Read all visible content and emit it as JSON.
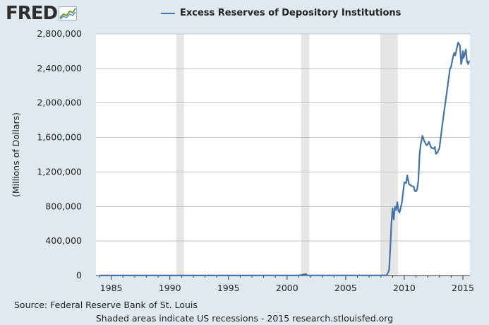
{
  "logo": {
    "text": "FRED",
    "icon": "trend-chart-icon",
    "color": "#2d2d2d"
  },
  "chart_data": {
    "type": "line",
    "title": "",
    "series": [
      {
        "name": "Excess Reserves of Depository Institutions",
        "color": "#4572a7",
        "points": [
          [
            1984.0,
            600
          ],
          [
            1985.0,
            700
          ],
          [
            1986.0,
            900
          ],
          [
            1987.0,
            800
          ],
          [
            1988.0,
            900
          ],
          [
            1989.0,
            800
          ],
          [
            1990.0,
            900
          ],
          [
            1991.0,
            1000
          ],
          [
            1992.0,
            1100
          ],
          [
            1993.0,
            1000
          ],
          [
            1994.0,
            1100
          ],
          [
            1995.0,
            1000
          ],
          [
            1996.0,
            1100
          ],
          [
            1997.0,
            1200
          ],
          [
            1998.0,
            1300
          ],
          [
            1999.0,
            1400
          ],
          [
            2000.0,
            1200
          ],
          [
            2001.0,
            1500
          ],
          [
            2001.6,
            18000
          ],
          [
            2001.75,
            1800
          ],
          [
            2002.0,
            1700
          ],
          [
            2003.0,
            1700
          ],
          [
            2004.0,
            1800
          ],
          [
            2005.0,
            1700
          ],
          [
            2006.0,
            1800
          ],
          [
            2007.0,
            1700
          ],
          [
            2008.0,
            2000
          ],
          [
            2008.5,
            3000
          ],
          [
            2008.7,
            60000
          ],
          [
            2008.8,
            300000
          ],
          [
            2008.9,
            600000
          ],
          [
            2009.0,
            780000
          ],
          [
            2009.1,
            650000
          ],
          [
            2009.2,
            800000
          ],
          [
            2009.3,
            760000
          ],
          [
            2009.4,
            850000
          ],
          [
            2009.5,
            750000
          ],
          [
            2009.6,
            730000
          ],
          [
            2009.8,
            850000
          ],
          [
            2010.0,
            1080000
          ],
          [
            2010.15,
            1070000
          ],
          [
            2010.25,
            1160000
          ],
          [
            2010.4,
            1060000
          ],
          [
            2010.6,
            1040000
          ],
          [
            2010.8,
            1030000
          ],
          [
            2010.9,
            980000
          ],
          [
            2011.0,
            975000
          ],
          [
            2011.1,
            1000000
          ],
          [
            2011.2,
            1100000
          ],
          [
            2011.3,
            1400000
          ],
          [
            2011.4,
            1520000
          ],
          [
            2011.5,
            1580000
          ],
          [
            2011.55,
            1620000
          ],
          [
            2011.7,
            1560000
          ],
          [
            2011.9,
            1510000
          ],
          [
            2012.0,
            1520000
          ],
          [
            2012.1,
            1550000
          ],
          [
            2012.3,
            1480000
          ],
          [
            2012.5,
            1470000
          ],
          [
            2012.6,
            1490000
          ],
          [
            2012.7,
            1410000
          ],
          [
            2012.85,
            1430000
          ],
          [
            2013.0,
            1480000
          ],
          [
            2013.2,
            1700000
          ],
          [
            2013.4,
            1900000
          ],
          [
            2013.6,
            2100000
          ],
          [
            2013.8,
            2300000
          ],
          [
            2013.9,
            2400000
          ],
          [
            2014.0,
            2420000
          ],
          [
            2014.1,
            2500000
          ],
          [
            2014.25,
            2580000
          ],
          [
            2014.35,
            2550000
          ],
          [
            2014.45,
            2620000
          ],
          [
            2014.6,
            2700000
          ],
          [
            2014.75,
            2660000
          ],
          [
            2014.85,
            2450000
          ],
          [
            2014.9,
            2480000
          ],
          [
            2015.0,
            2600000
          ],
          [
            2015.05,
            2520000
          ],
          [
            2015.15,
            2560000
          ],
          [
            2015.25,
            2620000
          ],
          [
            2015.35,
            2480000
          ],
          [
            2015.45,
            2450000
          ],
          [
            2015.55,
            2490000
          ]
        ]
      }
    ],
    "recessions": [
      [
        1990.55,
        1991.2
      ],
      [
        2001.2,
        2001.9
      ],
      [
        2007.95,
        2009.45
      ]
    ],
    "recession_color": "#e6e6e6",
    "xlim": [
      1983.7,
      2015.6
    ],
    "ylim": [
      0,
      2800000
    ],
    "yticks": [
      0,
      400000,
      800000,
      1200000,
      1600000,
      2000000,
      2400000,
      2800000
    ],
    "ytick_labels": [
      "0",
      "400,000",
      "800,000",
      "1,200,000",
      "1,600,000",
      "2,000,000",
      "2,400,000",
      "2,800,000"
    ],
    "xticks": [
      1985,
      1990,
      1995,
      2000,
      2005,
      2010,
      2015
    ],
    "xtick_labels": [
      "1985",
      "1990",
      "1995",
      "2000",
      "2005",
      "2010",
      "2015"
    ],
    "ylabel": "(Millions of Dollars)",
    "xlabel": "",
    "legend_position": "top-center",
    "grid": "horizontal"
  },
  "footer": {
    "source": "Source: Federal Reserve Bank of St. Louis",
    "note": "Shaded areas indicate US recessions - 2015 research.stlouisfed.org"
  }
}
